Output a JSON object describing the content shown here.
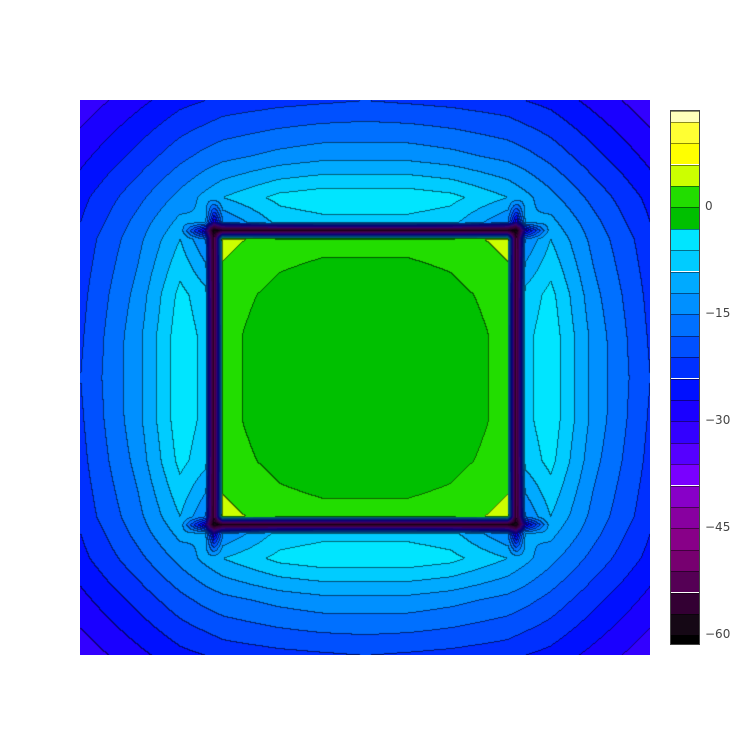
{
  "chart_data": {
    "type": "contour",
    "title": "",
    "xlabel": "",
    "ylabel": "",
    "x": [
      -1,
      -0.8,
      -0.65,
      -0.56,
      -0.53,
      -0.5,
      -0.3,
      -0.15,
      0,
      0.15,
      0.3,
      0.5,
      0.53,
      0.56,
      0.65,
      0.8,
      1
    ],
    "y": [
      -1,
      -0.8,
      -0.65,
      -0.56,
      -0.53,
      -0.5,
      -0.3,
      -0.15,
      0,
      0.15,
      0.3,
      0.5,
      0.53,
      0.56,
      0.65,
      0.8,
      1
    ],
    "z": [
      [
        -32,
        -28,
        -25,
        -24,
        -23.5,
        -23,
        -22,
        -21.5,
        -21,
        -21.5,
        -22,
        -23,
        -23.5,
        -24,
        -25,
        -28,
        -32
      ],
      [
        -28,
        -23,
        -19,
        -17,
        -16.5,
        -16,
        -14,
        -13,
        -13,
        -13,
        -14,
        -16,
        -16.5,
        -17,
        -19,
        -23,
        -28
      ],
      [
        -25,
        -19,
        -14,
        -11,
        -10,
        -9,
        -5,
        -4,
        -4,
        -4,
        -5,
        -9,
        -10,
        -11,
        -14,
        -19,
        -25
      ],
      [
        -24,
        -17,
        -11,
        -12,
        -30,
        -15,
        -8,
        -7,
        -7,
        -7,
        -8,
        -15,
        -30,
        -12,
        -11,
        -17,
        -24
      ],
      [
        -23.5,
        -16.5,
        -10,
        -30,
        -60,
        -55,
        -55,
        -55,
        -55,
        -55,
        -55,
        -55,
        -60,
        -30,
        -10,
        -16.5,
        -23.5
      ],
      [
        -23,
        -16,
        -9,
        -15,
        -55,
        4,
        1.5,
        1,
        1,
        1,
        1.5,
        4,
        -55,
        -15,
        -9,
        -16,
        -23
      ],
      [
        -22,
        -14,
        -5,
        -8,
        -55,
        1.5,
        -1,
        -2,
        -2,
        -2,
        -1,
        1.5,
        -55,
        -8,
        -5,
        -14,
        -22
      ],
      [
        -21.5,
        -13,
        -4,
        -7,
        -55,
        1,
        -2,
        -2.5,
        -2.5,
        -2.5,
        -2,
        1,
        -55,
        -7,
        -4,
        -13,
        -21.5
      ],
      [
        -21,
        -13,
        -4,
        -7,
        -55,
        1,
        -2,
        -2.5,
        -2.5,
        -2.5,
        -2,
        1,
        -55,
        -7,
        -4,
        -13,
        -21
      ],
      [
        -21.5,
        -13,
        -4,
        -7,
        -55,
        1,
        -2,
        -2.5,
        -2.5,
        -2.5,
        -2,
        1,
        -55,
        -7,
        -4,
        -13,
        -21.5
      ],
      [
        -22,
        -14,
        -5,
        -8,
        -55,
        1.5,
        -1,
        -2,
        -2,
        -2,
        -1,
        1.5,
        -55,
        -8,
        -5,
        -14,
        -22
      ],
      [
        -23,
        -16,
        -9,
        -15,
        -55,
        4,
        1.5,
        1,
        1,
        1,
        1.5,
        4,
        -55,
        -15,
        -9,
        -16,
        -23
      ],
      [
        -23.5,
        -16.5,
        -10,
        -30,
        -60,
        -55,
        -55,
        -55,
        -55,
        -55,
        -55,
        -55,
        -60,
        -30,
        -10,
        -16.5,
        -23.5
      ],
      [
        -24,
        -17,
        -11,
        -12,
        -30,
        -15,
        -8,
        -7,
        -7,
        -7,
        -8,
        -15,
        -30,
        -12,
        -11,
        -17,
        -24
      ],
      [
        -25,
        -19,
        -14,
        -11,
        -10,
        -9,
        -5,
        -4,
        -4,
        -4,
        -5,
        -9,
        -10,
        -11,
        -14,
        -19,
        -25
      ],
      [
        -28,
        -23,
        -19,
        -17,
        -16.5,
        -16,
        -14,
        -13,
        -13,
        -13,
        -14,
        -16,
        -16.5,
        -17,
        -19,
        -23,
        -28
      ],
      [
        -32,
        -28,
        -25,
        -24,
        -23.5,
        -23,
        -22,
        -21.5,
        -21,
        -21.5,
        -22,
        -23,
        -23.5,
        -24,
        -25,
        -28,
        -32
      ]
    ],
    "contours": {
      "start": -63,
      "size": 3
    },
    "colorbar": {
      "range": [
        -61.5,
        13.5
      ],
      "ticks": [
        0,
        -15,
        -30,
        -45,
        -60
      ],
      "tick_labels": [
        "0",
        "−15",
        "−30",
        "−45",
        "−60"
      ],
      "colors": [
        "#000000",
        "#150815",
        "#330033",
        "#550055",
        "#770070",
        "#880088",
        "#8800a0",
        "#8800c8",
        "#7a00ff",
        "#5500ff",
        "#3300ff",
        "#1a00ff",
        "#0010ff",
        "#0030ff",
        "#0050ff",
        "#0070ff",
        "#0090ff",
        "#00aaff",
        "#00ccff",
        "#00e5ff",
        "#00c000",
        "#22dd00",
        "#ccff00",
        "#ffff00",
        "#ffff33",
        "#ffffbb"
      ]
    },
    "grid": false,
    "axes_visible": false
  }
}
